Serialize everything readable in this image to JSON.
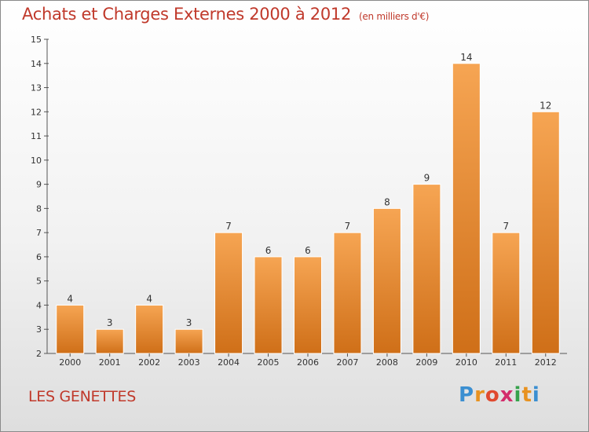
{
  "title": "Achats et Charges Externes 2000 à 2012",
  "unit": "(en milliers d'€)",
  "commune": "LES GENETTES",
  "logo": {
    "letters": [
      "P",
      "r",
      "o",
      "x",
      "i",
      "t",
      "i"
    ],
    "colors": [
      "#3b8fd1",
      "#e89220",
      "#e04a2f",
      "#d32d6c",
      "#36a24b",
      "#e89220",
      "#3b8fd1"
    ]
  },
  "colors": {
    "bar_light": "#f6a553",
    "bar_dark": "#cf6f18",
    "title": "#c0392b"
  },
  "chart_data": {
    "type": "bar",
    "categories": [
      "2000",
      "2001",
      "2002",
      "2003",
      "2004",
      "2005",
      "2006",
      "2007",
      "2008",
      "2009",
      "2010",
      "2011",
      "2012"
    ],
    "values": [
      4,
      3,
      4,
      3,
      7,
      6,
      6,
      7,
      8,
      9,
      14,
      7,
      12
    ],
    "ylim": [
      2,
      15
    ],
    "yticks": [
      2,
      3,
      4,
      5,
      6,
      7,
      8,
      9,
      10,
      11,
      12,
      13,
      14,
      15
    ],
    "grid": false,
    "data_labels": true
  }
}
